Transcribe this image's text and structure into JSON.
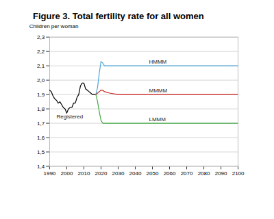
{
  "chart_data": {
    "type": "line",
    "title": "Figure 3. Total fertility rate for all women",
    "ylabel": "Children per woman",
    "xlim": [
      1990,
      2100
    ],
    "ylim": [
      1.4,
      2.3
    ],
    "xticks": [
      1990,
      2000,
      2010,
      2020,
      2030,
      2040,
      2050,
      2060,
      2070,
      2080,
      2090,
      2100
    ],
    "yticks": [
      {
        "value": 1.4,
        "label": "1,4"
      },
      {
        "value": 1.5,
        "label": "1,5"
      },
      {
        "value": 1.6,
        "label": "1,6"
      },
      {
        "value": 1.7,
        "label": "1,7"
      },
      {
        "value": 1.8,
        "label": "1,8"
      },
      {
        "value": 1.9,
        "label": "1,9"
      },
      {
        "value": 2.0,
        "label": "2,0"
      },
      {
        "value": 2.1,
        "label": "2,1"
      },
      {
        "value": 2.2,
        "label": "2,2"
      },
      {
        "value": 2.3,
        "label": "2,3"
      }
    ],
    "grid": true,
    "series": [
      {
        "name": "Registered",
        "color": "#000000",
        "x": [
          1990,
          1991,
          1992,
          1993,
          1994,
          1995,
          1996,
          1997,
          1998,
          1999,
          2000,
          2001,
          2002,
          2003,
          2004,
          2005,
          2006,
          2007,
          2008,
          2009,
          2010,
          2011,
          2012,
          2013,
          2014,
          2015,
          2016,
          2017
        ],
        "values": [
          1.93,
          1.92,
          1.89,
          1.87,
          1.86,
          1.84,
          1.85,
          1.83,
          1.81,
          1.8,
          1.77,
          1.8,
          1.81,
          1.81,
          1.84,
          1.84,
          1.88,
          1.9,
          1.96,
          1.98,
          1.98,
          1.94,
          1.93,
          1.92,
          1.91,
          1.9,
          1.9,
          1.9
        ]
      },
      {
        "name": "HMMM",
        "color": "#4da6d9",
        "x": [
          2017,
          2018,
          2019,
          2020,
          2021,
          2022,
          2025,
          2030,
          2040,
          2060,
          2080,
          2100
        ],
        "values": [
          1.9,
          1.95,
          2.05,
          2.13,
          2.12,
          2.1,
          2.1,
          2.1,
          2.1,
          2.1,
          2.1,
          2.1
        ]
      },
      {
        "name": "MMMM",
        "color": "#cc2222",
        "x": [
          2017,
          2018,
          2019,
          2020,
          2021,
          2022,
          2025,
          2030,
          2040,
          2060,
          2080,
          2100
        ],
        "values": [
          1.9,
          1.91,
          1.92,
          1.93,
          1.93,
          1.92,
          1.91,
          1.9,
          1.9,
          1.9,
          1.9,
          1.9
        ]
      },
      {
        "name": "LMMM",
        "color": "#44aa44",
        "x": [
          2017,
          2018,
          2019,
          2020,
          2021,
          2022,
          2025,
          2030,
          2040,
          2060,
          2080,
          2100
        ],
        "values": [
          1.9,
          1.85,
          1.78,
          1.72,
          1.7,
          1.7,
          1.7,
          1.7,
          1.7,
          1.7,
          1.7,
          1.7
        ]
      }
    ],
    "annotations": [
      {
        "text": "HMMM",
        "x": 2048,
        "y": 2.115
      },
      {
        "text": "MMMM",
        "x": 2048,
        "y": 1.915
      },
      {
        "text": "LMMM",
        "x": 2048,
        "y": 1.715
      },
      {
        "text": "Registered",
        "x": 1994,
        "y": 1.735
      }
    ]
  }
}
